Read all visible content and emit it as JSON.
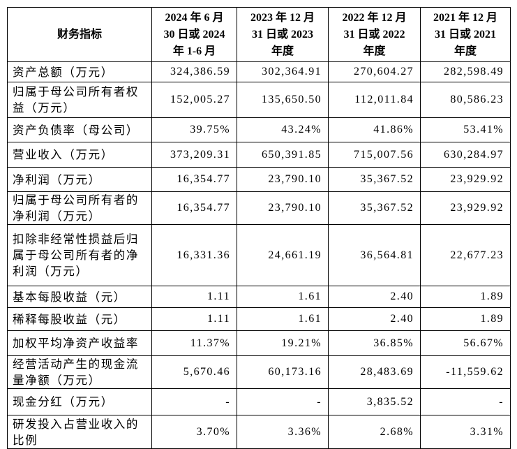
{
  "table": {
    "header": [
      "财务指标",
      [
        "2024 年 6 月",
        "30 日或 2024",
        "年 1-6 月"
      ],
      [
        "2023 年 12 月",
        "31 日或 2023",
        "年度"
      ],
      [
        "2022 年 12 月",
        "31 日或 2022",
        "年度"
      ],
      [
        "2021 年 12 月",
        "31 日或 2021",
        "年度"
      ]
    ],
    "rows": [
      [
        "资产总额（万元）",
        "324,386.59",
        "302,364.91",
        "270,604.27",
        "282,598.49"
      ],
      [
        "归属于母公司所有者权益（万元）",
        "152,005.27",
        "135,650.50",
        "112,011.84",
        "80,586.23"
      ],
      [
        "资产负债率（母公司）",
        "39.75%",
        "43.24%",
        "41.86%",
        "53.41%"
      ],
      [
        "营业收入（万元）",
        "373,209.31",
        "650,391.85",
        "715,007.56",
        "630,284.97"
      ],
      [
        "净利润（万元）",
        "16,354.77",
        "23,790.10",
        "35,367.52",
        "23,929.92"
      ],
      [
        "归属于母公司所有者的净利润（万元）",
        "16,354.77",
        "23,790.10",
        "35,367.52",
        "23,929.92"
      ],
      [
        "扣除非经常性损益后归属于母公司所有者的净利润（万元）",
        "16,331.36",
        "24,661.19",
        "36,564.81",
        "22,677.23"
      ],
      [
        "基本每股收益（元）",
        "1.11",
        "1.61",
        "2.40",
        "1.89"
      ],
      [
        "稀释每股收益（元）",
        "1.11",
        "1.61",
        "2.40",
        "1.89"
      ],
      [
        "加权平均净资产收益率",
        "11.37%",
        "19.21%",
        "36.85%",
        "56.67%"
      ],
      [
        "经营活动产生的现金流量净额（万元）",
        "5,670.46",
        "60,173.16",
        "28,483.69",
        "-11,559.62"
      ],
      [
        "现金分红（万元）",
        "-",
        "-",
        "3,835.52",
        "-"
      ],
      [
        "研发投入占营业收入的比例",
        "3.70%",
        "3.36%",
        "2.68%",
        "3.31%"
      ]
    ]
  }
}
